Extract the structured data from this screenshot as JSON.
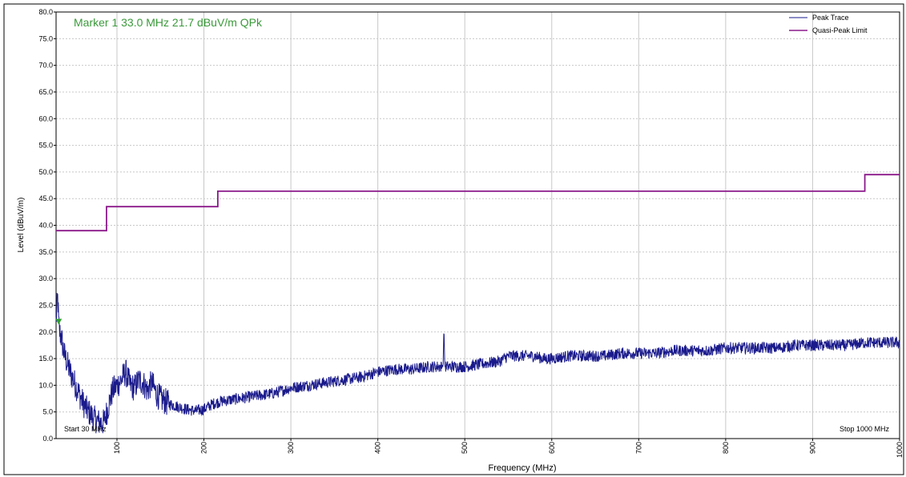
{
  "chart_data": {
    "type": "line",
    "title": "",
    "marker_readout": "Marker 1 33.0 MHz 21.7 dBuV/m QPk",
    "xlabel": "Frequency (MHz)",
    "ylabel": "Level (dBuV/m)",
    "xlim": [
      30,
      1000
    ],
    "ylim": [
      0,
      80
    ],
    "x_ticks": [
      100,
      200,
      300,
      400,
      500,
      600,
      700,
      800,
      900,
      1000
    ],
    "y_ticks": [
      0,
      5,
      10,
      15,
      20,
      25,
      30,
      35,
      40,
      45,
      50,
      55,
      60,
      65,
      70,
      75,
      80
    ],
    "start_label": "Start 30 MHz",
    "stop_label": "Stop 1000 MHz",
    "grid": true,
    "legend_position": "top-right",
    "series": [
      {
        "name": "Peak Trace",
        "color": "#1a1a8c",
        "x": [
          30,
          31,
          32,
          33,
          34,
          36,
          38,
          40,
          45,
          50,
          55,
          60,
          65,
          70,
          75,
          80,
          85,
          90,
          95,
          100,
          105,
          110,
          115,
          120,
          125,
          130,
          135,
          140,
          145,
          150,
          160,
          170,
          180,
          190,
          200,
          210,
          220,
          240,
          260,
          280,
          300,
          320,
          340,
          360,
          380,
          400,
          420,
          440,
          460,
          475,
          476,
          477,
          480,
          500,
          520,
          540,
          550,
          560,
          580,
          590,
          600,
          620,
          640,
          660,
          680,
          700,
          720,
          740,
          760,
          780,
          800,
          820,
          840,
          860,
          880,
          900,
          920,
          940,
          960,
          980,
          1000
        ],
        "values": [
          22.0,
          24.5,
          26.5,
          21.7,
          20.0,
          19.0,
          17.0,
          15.5,
          13.0,
          11.0,
          9.0,
          7.0,
          5.5,
          4.5,
          3.5,
          3.0,
          3.0,
          6.0,
          9.0,
          10.0,
          11.0,
          12.5,
          10.0,
          9.5,
          11.0,
          10.5,
          9.0,
          10.5,
          8.5,
          7.5,
          6.5,
          6.0,
          5.5,
          5.2,
          5.5,
          6.5,
          7.0,
          7.5,
          8.0,
          8.5,
          9.5,
          10.0,
          10.5,
          11.0,
          11.5,
          12.5,
          13.0,
          13.0,
          13.5,
          13.5,
          21.0,
          13.5,
          13.5,
          13.5,
          14.0,
          14.5,
          15.5,
          15.5,
          15.5,
          15.0,
          15.0,
          15.5,
          15.5,
          15.5,
          16.0,
          16.0,
          16.0,
          16.5,
          16.5,
          16.5,
          17.0,
          17.0,
          17.0,
          17.0,
          17.5,
          17.5,
          17.5,
          17.5,
          18.0,
          18.0,
          18.0
        ]
      },
      {
        "name": "Quasi-Peak Limit",
        "color": "#8b1a8b",
        "x": [
          30,
          88,
          88,
          216,
          216,
          960,
          960,
          1000
        ],
        "values": [
          39.0,
          39.0,
          43.5,
          43.5,
          46.4,
          46.4,
          49.5,
          49.5
        ]
      }
    ],
    "colors": {
      "marker_text": "#3a9a3a",
      "marker": "#2ea02e",
      "grid": "#c8c8c8"
    }
  }
}
